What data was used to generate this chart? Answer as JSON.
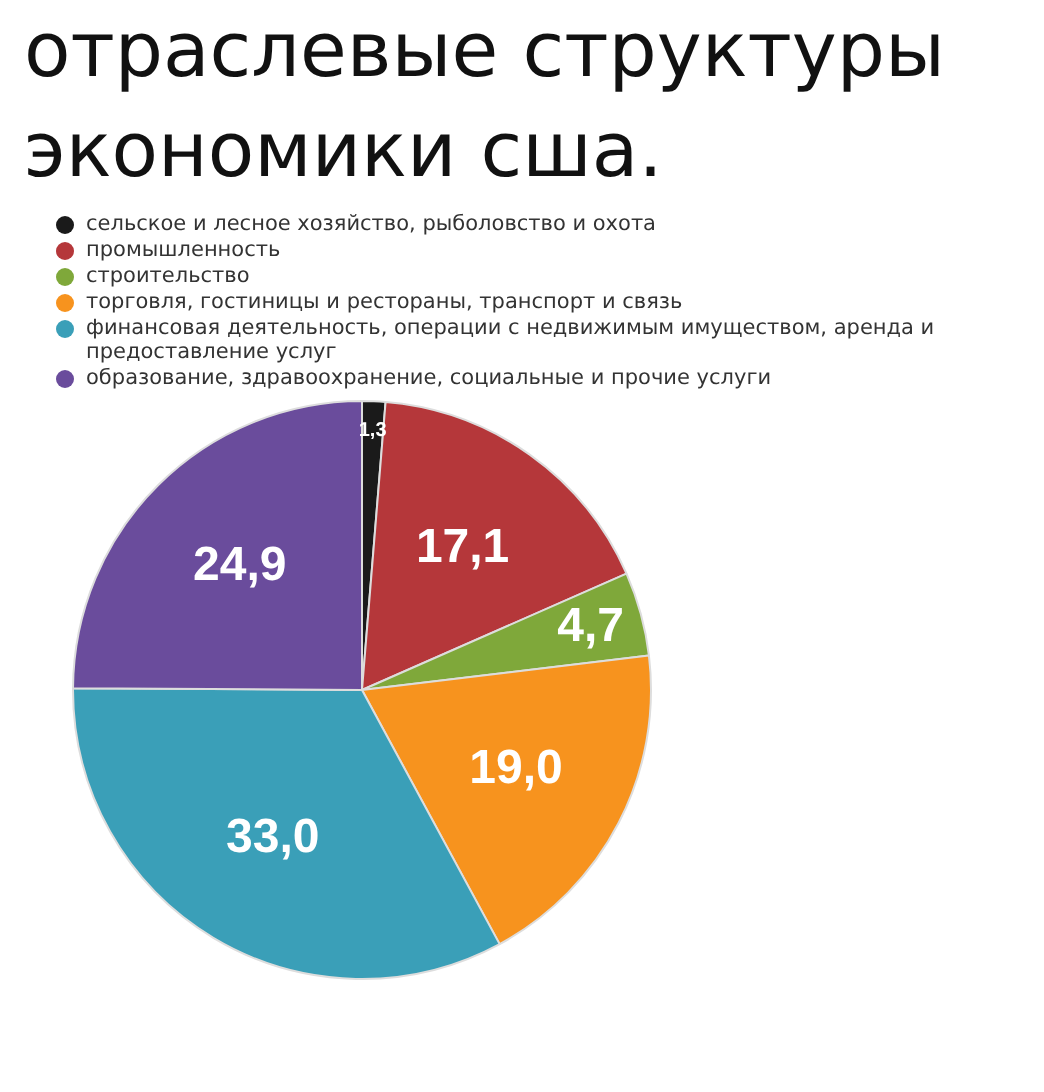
{
  "chart_data": {
    "type": "pie",
    "title": "отраслевые структуры экономики сша.",
    "categories": [
      "сельское и лесное хозяйство, рыболовство и охота",
      "промышленность",
      "строительство",
      "торговля, гостиницы и рестораны, транспорт и связь",
      "финансовая деятельность, операции с недвижимым имуществом, аренда и предоставление услуг",
      "образование, здравоохранение, социальные и прочие услуги"
    ],
    "values": [
      1.3,
      17.1,
      4.7,
      19.0,
      33.0,
      24.9
    ],
    "value_labels": [
      "1,3",
      "17,1",
      "4,7",
      "19,0",
      "33,0",
      "24,9"
    ],
    "colors": [
      "#1a1a1a",
      "#b5373a",
      "#7fa83a",
      "#f7931e",
      "#3a9fb8",
      "#6a4c9c"
    ],
    "legend": "top"
  }
}
